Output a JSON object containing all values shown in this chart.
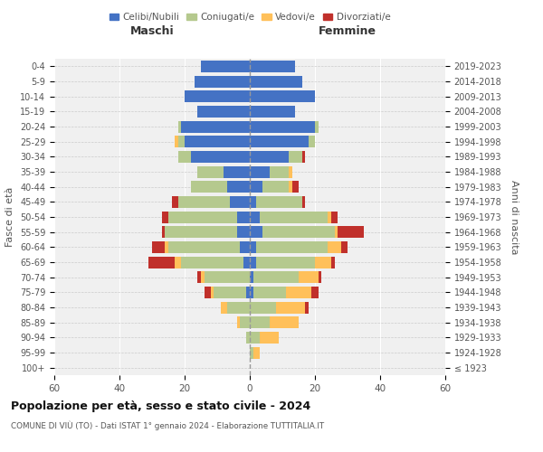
{
  "age_groups": [
    "100+",
    "95-99",
    "90-94",
    "85-89",
    "80-84",
    "75-79",
    "70-74",
    "65-69",
    "60-64",
    "55-59",
    "50-54",
    "45-49",
    "40-44",
    "35-39",
    "30-34",
    "25-29",
    "20-24",
    "15-19",
    "10-14",
    "5-9",
    "0-4"
  ],
  "birth_years": [
    "≤ 1923",
    "1924-1928",
    "1929-1933",
    "1934-1938",
    "1939-1943",
    "1944-1948",
    "1949-1953",
    "1954-1958",
    "1959-1963",
    "1964-1968",
    "1969-1973",
    "1974-1978",
    "1979-1983",
    "1984-1988",
    "1989-1993",
    "1994-1998",
    "1999-2003",
    "2004-2008",
    "2009-2013",
    "2014-2018",
    "2019-2023"
  ],
  "male": {
    "celibi": [
      0,
      0,
      0,
      0,
      0,
      1,
      0,
      2,
      3,
      4,
      4,
      6,
      7,
      8,
      18,
      20,
      21,
      16,
      20,
      17,
      15
    ],
    "coniugati": [
      0,
      0,
      1,
      3,
      7,
      10,
      14,
      19,
      22,
      22,
      21,
      16,
      11,
      8,
      4,
      2,
      1,
      0,
      0,
      0,
      0
    ],
    "vedovi": [
      0,
      0,
      0,
      1,
      2,
      1,
      1,
      2,
      1,
      0,
      0,
      0,
      0,
      0,
      0,
      1,
      0,
      0,
      0,
      0,
      0
    ],
    "divorziati": [
      0,
      0,
      0,
      0,
      0,
      2,
      1,
      8,
      4,
      1,
      2,
      2,
      0,
      0,
      0,
      0,
      0,
      0,
      0,
      0,
      0
    ]
  },
  "female": {
    "nubili": [
      0,
      0,
      0,
      0,
      0,
      1,
      1,
      2,
      2,
      4,
      3,
      2,
      4,
      6,
      12,
      18,
      20,
      14,
      20,
      16,
      14
    ],
    "coniugate": [
      0,
      1,
      3,
      6,
      8,
      10,
      14,
      18,
      22,
      22,
      21,
      14,
      8,
      6,
      4,
      2,
      1,
      0,
      0,
      0,
      0
    ],
    "vedove": [
      0,
      2,
      6,
      9,
      9,
      8,
      6,
      5,
      4,
      1,
      1,
      0,
      1,
      1,
      0,
      0,
      0,
      0,
      0,
      0,
      0
    ],
    "divorziate": [
      0,
      0,
      0,
      0,
      1,
      2,
      1,
      1,
      2,
      8,
      2,
      1,
      2,
      0,
      1,
      0,
      0,
      0,
      0,
      0,
      0
    ]
  },
  "colors": {
    "celibi": "#4472c4",
    "coniugati": "#b5c98e",
    "vedovi": "#ffc05a",
    "divorziati": "#c0302b"
  },
  "xlim": 60,
  "title": "Popolazione per età, sesso e stato civile - 2024",
  "subtitle": "COMUNE DI VIÙ (TO) - Dati ISTAT 1° gennaio 2024 - Elaborazione TUTTITALIA.IT",
  "ylabel_left": "Fasce di età",
  "ylabel_right": "Anni di nascita",
  "xlabel_left": "Maschi",
  "xlabel_right": "Femmine",
  "bg_color": "#f0f0f0",
  "grid_color": "#cccccc"
}
